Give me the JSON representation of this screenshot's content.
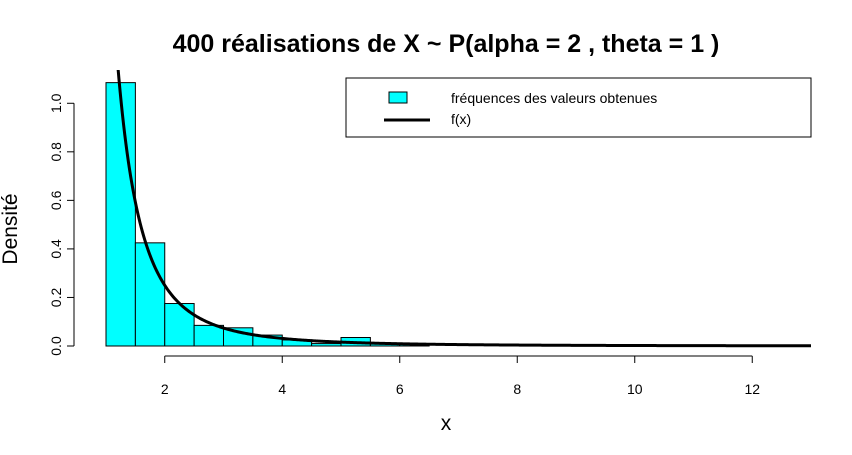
{
  "chart_data": {
    "type": "bar",
    "title": "400  réalisations de X ~ P(alpha =  2 , theta =  1 )",
    "xlabel": "x",
    "ylabel": "Densité",
    "xlim": [
      1,
      13
    ],
    "ylim": [
      0,
      1.1
    ],
    "x_ticks": [
      2,
      4,
      6,
      8,
      10,
      12
    ],
    "y_ticks": [
      0.0,
      0.2,
      0.4,
      0.6,
      0.8,
      1.0
    ],
    "x_tick_labels": [
      "2",
      "4",
      "6",
      "8",
      "10",
      "12"
    ],
    "y_tick_labels": [
      "0.0",
      "0.2",
      "0.4",
      "0.6",
      "0.8",
      "1.0"
    ],
    "histogram": {
      "name": "fréquences des valeurs obtenues",
      "color": "#00FFFF",
      "bins": [
        {
          "from": 1.0,
          "to": 1.5,
          "density": 1.085
        },
        {
          "from": 1.5,
          "to": 2.0,
          "density": 0.425
        },
        {
          "from": 2.0,
          "to": 2.5,
          "density": 0.175
        },
        {
          "from": 2.5,
          "to": 3.0,
          "density": 0.085
        },
        {
          "from": 3.0,
          "to": 3.5,
          "density": 0.075
        },
        {
          "from": 3.5,
          "to": 4.0,
          "density": 0.045
        },
        {
          "from": 4.0,
          "to": 4.5,
          "density": 0.025
        },
        {
          "from": 4.5,
          "to": 5.0,
          "density": 0.01
        },
        {
          "from": 5.0,
          "to": 5.5,
          "density": 0.035
        },
        {
          "from": 5.5,
          "to": 6.0,
          "density": 0.01
        },
        {
          "from": 6.0,
          "to": 6.5,
          "density": 0.01
        }
      ]
    },
    "curve": {
      "name": "f(x)",
      "color": "#000000",
      "formula": "2 / x^3",
      "x_from": 1.0,
      "x_to": 13.0
    },
    "legend": {
      "position": "top-right",
      "entries": [
        "fréquences des valeurs obtenues",
        "f(x)"
      ]
    }
  }
}
